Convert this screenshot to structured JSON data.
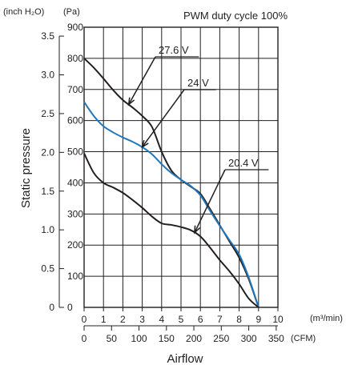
{
  "chart_data": {
    "type": "line",
    "title": "PWM duty cycle 100%",
    "xlabel": "Airflow",
    "ylabel": "Static pressure",
    "x_unit_primary": "(m³/min)",
    "x_unit_secondary": "(CFM)",
    "y_unit_primary": "(Pa)",
    "y_unit_secondary": "(inch H₂O)",
    "xlim": [
      0,
      10
    ],
    "ylim": [
      0,
      900
    ],
    "grid": true,
    "x_ticks": [
      "0",
      "1",
      "2",
      "3",
      "4",
      "5",
      "6",
      "7",
      "8",
      "9",
      "10"
    ],
    "x_ticks_secondary": [
      {
        "label": "0",
        "value": 0
      },
      {
        "label": "50",
        "value": 1.416
      },
      {
        "label": "100",
        "value": 2.832
      },
      {
        "label": "150",
        "value": 4.248
      },
      {
        "label": "200",
        "value": 5.663
      },
      {
        "label": "250",
        "value": 7.079
      },
      {
        "label": "300",
        "value": 8.495
      },
      {
        "label": "350",
        "value": 9.911
      }
    ],
    "y_ticks": [
      "0",
      "100",
      "200",
      "300",
      "400",
      "500",
      "600",
      "700",
      "800",
      "900"
    ],
    "y_ticks_secondary": [
      {
        "label": "0",
        "value": 0
      },
      {
        "label": "0.5",
        "value": 124.5
      },
      {
        "label": "1.0",
        "value": 249
      },
      {
        "label": "1.5",
        "value": 373.5
      },
      {
        "label": "2.0",
        "value": 498
      },
      {
        "label": "2.5",
        "value": 622.5
      },
      {
        "label": "3.0",
        "value": 747
      },
      {
        "label": "3.5",
        "value": 871.5
      }
    ],
    "series": [
      {
        "name": "27.6 V",
        "color": "#231f20",
        "x": [
          0,
          0.5,
          1,
          1.5,
          2,
          2.5,
          3,
          3.5,
          4,
          4.5,
          5,
          5.5,
          6,
          6.5,
          7,
          7.5,
          8,
          8.5,
          9
        ],
        "y": [
          800,
          770,
          735,
          698,
          666,
          642,
          615,
          580,
          500,
          440,
          410,
          388,
          365,
          316,
          264,
          212,
          160,
          90,
          0
        ]
      },
      {
        "name": "24 V",
        "color": "#2277bb",
        "x": [
          0,
          0.5,
          1,
          1.5,
          2,
          2.5,
          3,
          3.5,
          4,
          4.5,
          5,
          5.5,
          6,
          6.5,
          7,
          7.5,
          8,
          8.5,
          9
        ],
        "y": [
          660,
          615,
          582,
          562,
          546,
          532,
          515,
          492,
          460,
          432,
          410,
          390,
          360,
          310,
          262,
          216,
          170,
          95,
          0
        ]
      },
      {
        "name": "20.4 V",
        "color": "#231f20",
        "x": [
          0,
          0.5,
          1,
          1.5,
          2,
          2.5,
          3,
          3.5,
          4,
          4.5,
          5,
          5.5,
          6,
          6.5,
          7,
          7.5,
          8,
          8.5,
          9
        ],
        "y": [
          495,
          432,
          400,
          385,
          368,
          345,
          320,
          292,
          270,
          265,
          258,
          248,
          228,
          192,
          152,
          116,
          75,
          28,
          0
        ]
      }
    ],
    "annotations": [
      {
        "text": "27.6 V",
        "series": "27.6 V",
        "points_to_x": 2.3
      },
      {
        "text": "24 V",
        "series": "24 V",
        "points_to_x": 3.0
      },
      {
        "text": "20.4 V",
        "series": "20.4 V",
        "points_to_x": 5.7
      }
    ]
  }
}
